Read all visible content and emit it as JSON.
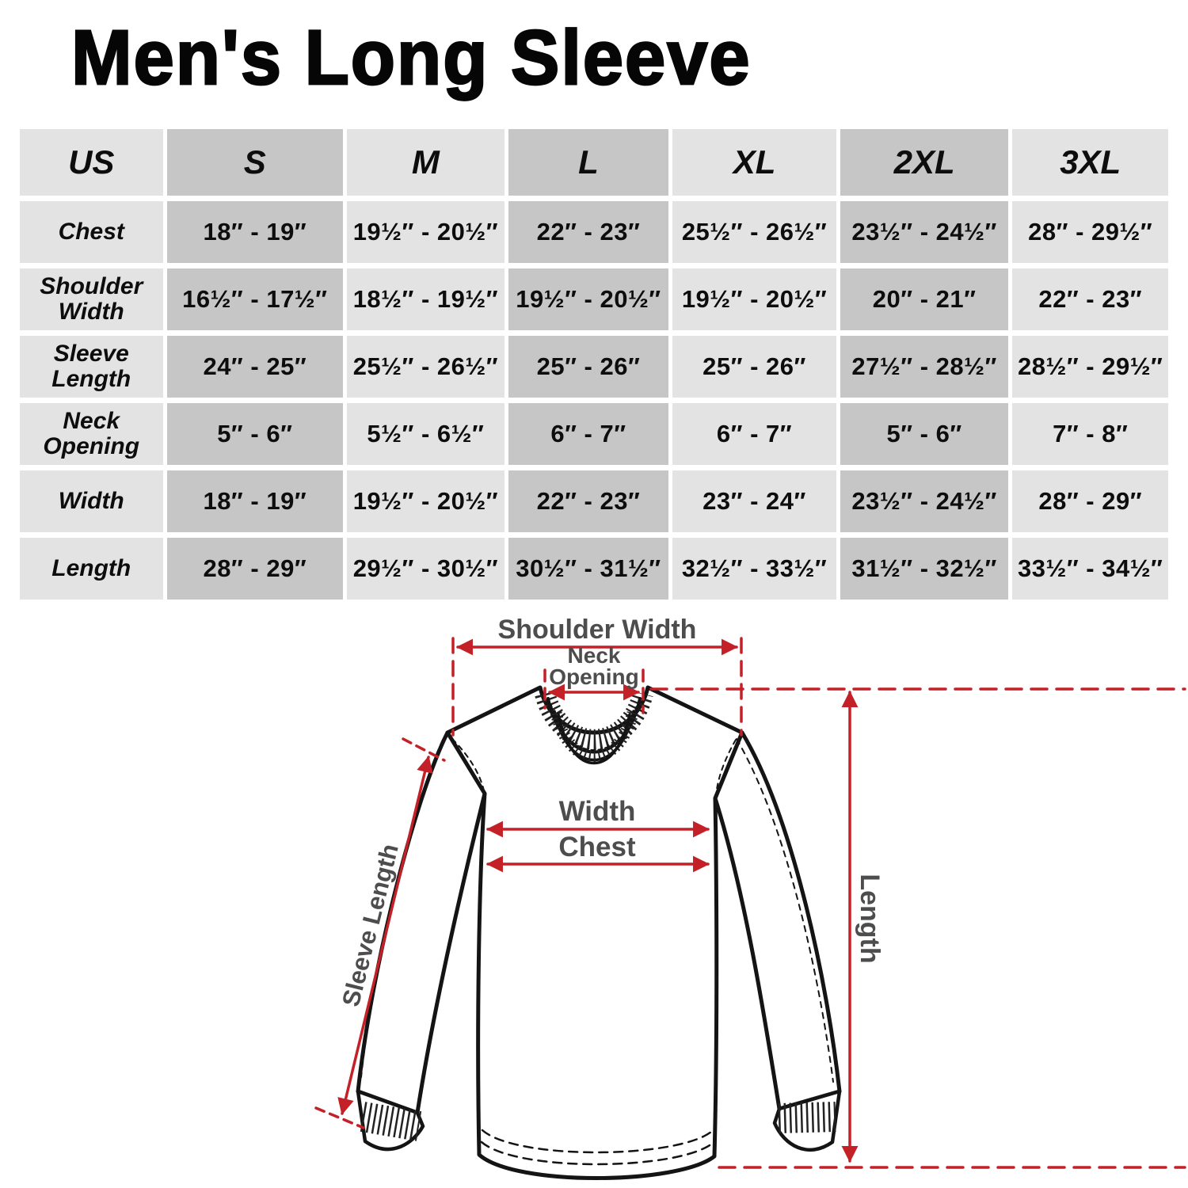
{
  "title": "Men's Long Sleeve",
  "size_chart": {
    "columns": [
      "US",
      "S",
      "M",
      "L",
      "XL",
      "2XL",
      "3XL"
    ],
    "rows": [
      {
        "label": "Chest",
        "values": [
          "18″ - 19″",
          "19½″ - 20½″",
          "22″ - 23″",
          "25½″ - 26½″",
          "23½″ - 24½″",
          "28″ - 29½″"
        ]
      },
      {
        "label": "Shoulder Width",
        "values": [
          "16½″ - 17½″",
          "18½″ - 19½″",
          "19½″ - 20½″",
          "19½″ - 20½″",
          "20″ - 21″",
          "22″ - 23″"
        ]
      },
      {
        "label": "Sleeve Length",
        "values": [
          "24″ - 25″",
          "25½″ - 26½″",
          "25″ - 26″",
          "25″ - 26″",
          "27½″ - 28½″",
          "28½″ - 29½″"
        ]
      },
      {
        "label": "Neck Opening",
        "values": [
          "5″ - 6″",
          "5½″ - 6½″",
          "6″ - 7″",
          "6″ - 7″",
          "5″ - 6″",
          "7″ - 8″"
        ]
      },
      {
        "label": "Width",
        "values": [
          "18″ - 19″",
          "19½″ - 20½″",
          "22″ - 23″",
          "23″ - 24″",
          "23½″ - 24½″",
          "28″ - 29″"
        ]
      },
      {
        "label": "Length",
        "values": [
          "28″ - 29″",
          "29½″ - 30½″",
          "30½″ - 31½″",
          "32½″ - 33½″",
          "31½″ - 32½″",
          "33½″ - 34½″"
        ]
      }
    ],
    "colors": {
      "light_cell": "#e3e3e3",
      "dark_cell": "#c6c6c6"
    }
  },
  "diagram": {
    "labels": {
      "shoulder_width": "Shoulder Width",
      "neck_line1": "Neck",
      "neck_line2": "Opening",
      "width": "Width",
      "chest": "Chest",
      "sleeve_length": "Sleeve Length",
      "length": "Length"
    },
    "colors": {
      "dimension_red": "#c32127",
      "label_gray": "#4d4d4d",
      "outline": "#141414"
    }
  }
}
